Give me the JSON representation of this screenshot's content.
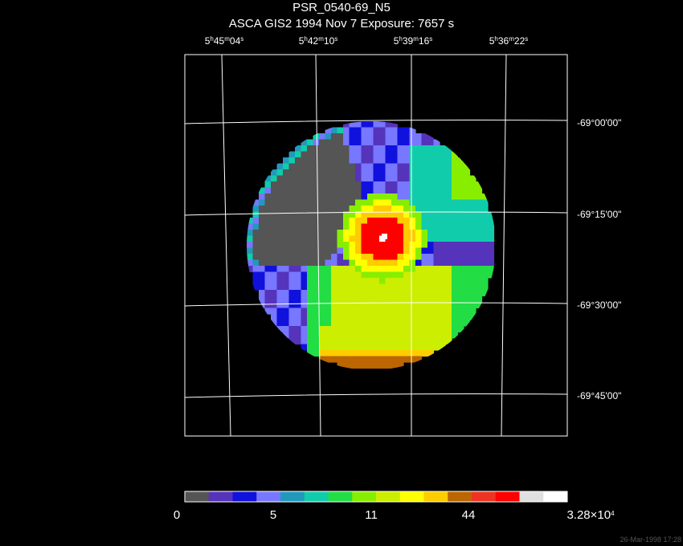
{
  "title": "PSR_0540-69_N5",
  "subtitle": "ASCA GIS2   1994 Nov  7    Exposure:  7657 s",
  "ra_labels": [
    {
      "h": "5",
      "m": "45",
      "s": "04"
    },
    {
      "h": "5",
      "m": "42",
      "s": "10"
    },
    {
      "h": "5",
      "m": "39",
      "s": "16"
    },
    {
      "h": "5",
      "m": "36",
      "s": "22"
    }
  ],
  "dec_labels": [
    "-69°00'00\"",
    "-69°15'00\"",
    "-69°30'00\"",
    "-69°45'00\""
  ],
  "colorbar": {
    "colors": [
      "#555555",
      "#5533bb",
      "#1111dd",
      "#7777ff",
      "#2299bb",
      "#11ccaa",
      "#22dd44",
      "#88ee00",
      "#ccee00",
      "#ffff00",
      "#ffcc00",
      "#bb6600",
      "#ee3322",
      "#ff0000",
      "#e0e0e0",
      "#ffffff"
    ],
    "tick_labels": [
      "0",
      "5",
      "11",
      "44",
      "3.28×10⁴"
    ],
    "max_label": {
      "base": "3.28×10",
      "exp": "4"
    }
  },
  "timestamp": "26-Mar-1998 17:28"
}
